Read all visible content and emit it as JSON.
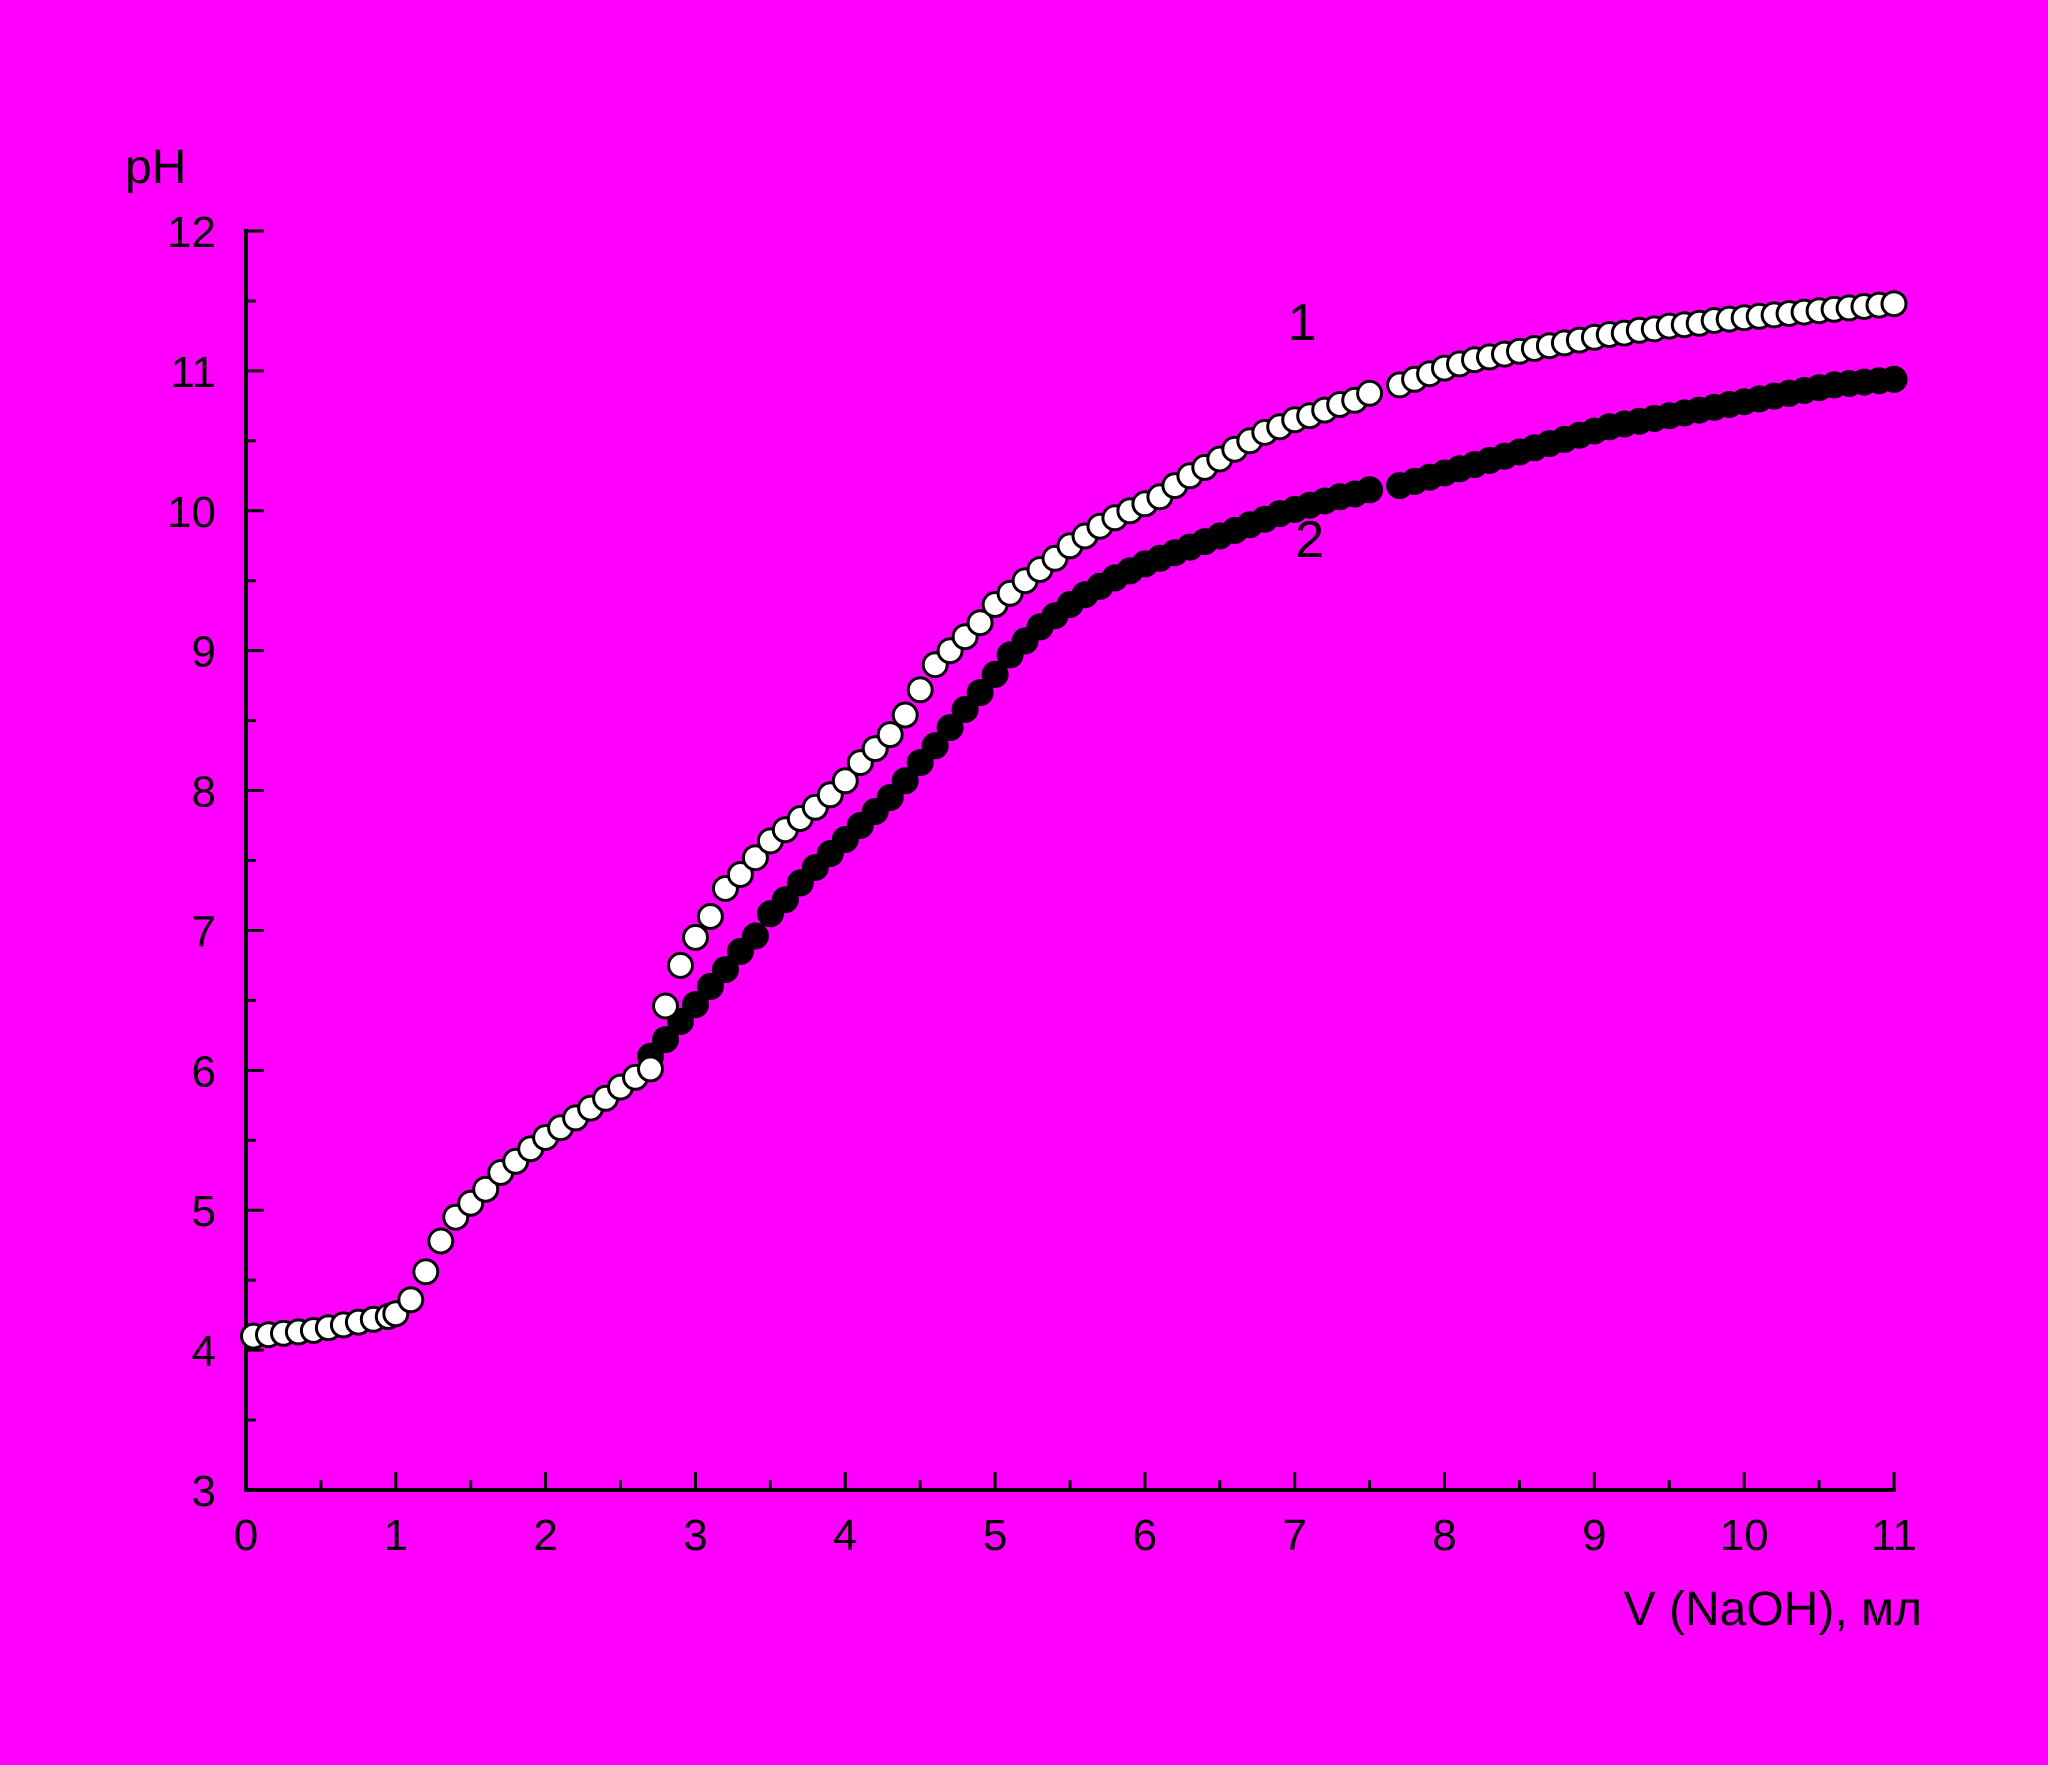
{
  "background_color": "#ff00ff",
  "chart_data": {
    "type": "scatter",
    "xlabel": "V (NaOH), мл",
    "ylabel": "pH",
    "xlim": [
      0,
      11
    ],
    "ylim": [
      3,
      12
    ],
    "x_ticks": [
      "0",
      "1",
      "2",
      "3",
      "4",
      "5",
      "6",
      "7",
      "8",
      "9",
      "10",
      "11"
    ],
    "y_ticks": [
      "3",
      "4",
      "5",
      "6",
      "7",
      "8",
      "9",
      "10",
      "11",
      "12"
    ],
    "grid": false,
    "legend": "none",
    "series": [
      {
        "name": "1",
        "marker": "open-circle",
        "marker_fill": "#ffffff",
        "marker_stroke": "#000000",
        "x": [
          0.05,
          0.15,
          0.25,
          0.35,
          0.45,
          0.55,
          0.65,
          0.75,
          0.85,
          0.95,
          1.0,
          1.1,
          1.2,
          1.3,
          1.4,
          1.5,
          1.6,
          1.7,
          1.8,
          1.9,
          2.0,
          2.1,
          2.2,
          2.3,
          2.4,
          2.5,
          2.6,
          2.7,
          2.8,
          2.9,
          3.0,
          3.1,
          3.2,
          3.3,
          3.4,
          3.5,
          3.6,
          3.7,
          3.8,
          3.9,
          4.0,
          4.1,
          4.2,
          4.3,
          4.4,
          4.5,
          4.6,
          4.7,
          4.8,
          4.9,
          5.0,
          5.1,
          5.2,
          5.3,
          5.4,
          5.5,
          5.6,
          5.7,
          5.8,
          5.9,
          6.0,
          6.1,
          6.2,
          6.3,
          6.4,
          6.5,
          6.6,
          6.7,
          6.8,
          6.9,
          7.0,
          7.1,
          7.2,
          7.3,
          7.4,
          7.5,
          7.7,
          7.8,
          7.9,
          8.0,
          8.1,
          8.2,
          8.3,
          8.4,
          8.5,
          8.6,
          8.7,
          8.8,
          8.9,
          9.0,
          9.1,
          9.2,
          9.3,
          9.4,
          9.5,
          9.6,
          9.7,
          9.8,
          9.9,
          10.0,
          10.1,
          10.2,
          10.3,
          10.4,
          10.5,
          10.6,
          10.7,
          10.8,
          10.9,
          11.0
        ],
        "y": [
          4.1,
          4.11,
          4.12,
          4.13,
          4.14,
          4.16,
          4.18,
          4.2,
          4.22,
          4.24,
          4.26,
          4.36,
          4.56,
          4.78,
          4.95,
          5.05,
          5.15,
          5.27,
          5.35,
          5.44,
          5.52,
          5.59,
          5.66,
          5.73,
          5.8,
          5.88,
          5.95,
          6.01,
          6.46,
          6.75,
          6.95,
          7.1,
          7.3,
          7.4,
          7.52,
          7.64,
          7.72,
          7.8,
          7.88,
          7.97,
          8.07,
          8.2,
          8.3,
          8.4,
          8.54,
          8.72,
          8.9,
          9.0,
          9.1,
          9.2,
          9.33,
          9.41,
          9.5,
          9.58,
          9.66,
          9.75,
          9.82,
          9.89,
          9.95,
          10.0,
          10.05,
          10.1,
          10.18,
          10.25,
          10.31,
          10.37,
          10.44,
          10.5,
          10.56,
          10.6,
          10.65,
          10.68,
          10.72,
          10.76,
          10.79,
          10.84,
          10.9,
          10.94,
          10.98,
          11.02,
          11.05,
          11.08,
          11.1,
          11.12,
          11.14,
          11.16,
          11.18,
          11.2,
          11.22,
          11.24,
          11.26,
          11.27,
          11.29,
          11.3,
          11.32,
          11.33,
          11.34,
          11.36,
          11.37,
          11.38,
          11.39,
          11.4,
          11.41,
          11.42,
          11.43,
          11.44,
          11.45,
          11.46,
          11.47,
          11.48
        ]
      },
      {
        "name": "2",
        "marker": "filled-circle",
        "marker_fill": "#000000",
        "marker_stroke": "#000000",
        "x": [
          2.7,
          2.8,
          2.9,
          3.0,
          3.1,
          3.2,
          3.3,
          3.4,
          3.5,
          3.6,
          3.7,
          3.8,
          3.9,
          4.0,
          4.1,
          4.2,
          4.3,
          4.4,
          4.5,
          4.6,
          4.7,
          4.8,
          4.9,
          5.0,
          5.1,
          5.2,
          5.3,
          5.4,
          5.5,
          5.6,
          5.7,
          5.8,
          5.9,
          6.0,
          6.1,
          6.2,
          6.3,
          6.4,
          6.5,
          6.6,
          6.7,
          6.8,
          6.9,
          7.0,
          7.1,
          7.2,
          7.3,
          7.4,
          7.5,
          7.7,
          7.8,
          7.9,
          8.0,
          8.1,
          8.2,
          8.3,
          8.4,
          8.5,
          8.6,
          8.7,
          8.8,
          8.9,
          9.0,
          9.1,
          9.2,
          9.3,
          9.4,
          9.5,
          9.6,
          9.7,
          9.8,
          9.9,
          10.0,
          10.1,
          10.2,
          10.3,
          10.4,
          10.5,
          10.6,
          10.7,
          10.8,
          10.9,
          11.0
        ],
        "y": [
          6.1,
          6.22,
          6.35,
          6.47,
          6.6,
          6.72,
          6.85,
          6.96,
          7.12,
          7.22,
          7.34,
          7.45,
          7.55,
          7.65,
          7.75,
          7.85,
          7.95,
          8.07,
          8.2,
          8.32,
          8.45,
          8.58,
          8.7,
          8.83,
          8.97,
          9.07,
          9.17,
          9.25,
          9.33,
          9.4,
          9.46,
          9.52,
          9.57,
          9.62,
          9.66,
          9.7,
          9.74,
          9.78,
          9.82,
          9.86,
          9.9,
          9.94,
          9.98,
          10.01,
          10.04,
          10.07,
          10.1,
          10.12,
          10.15,
          10.18,
          10.21,
          10.24,
          10.27,
          10.3,
          10.33,
          10.36,
          10.39,
          10.42,
          10.45,
          10.48,
          10.51,
          10.54,
          10.57,
          10.6,
          10.62,
          10.64,
          10.66,
          10.68,
          10.7,
          10.72,
          10.74,
          10.76,
          10.78,
          10.8,
          10.82,
          10.84,
          10.86,
          10.88,
          10.9,
          10.91,
          10.92,
          10.93,
          10.94
        ]
      }
    ],
    "annotations": [
      {
        "text": "1",
        "x": 7.05,
        "y": 11.35
      },
      {
        "text": "2",
        "x": 7.1,
        "y": 9.8
      }
    ]
  }
}
